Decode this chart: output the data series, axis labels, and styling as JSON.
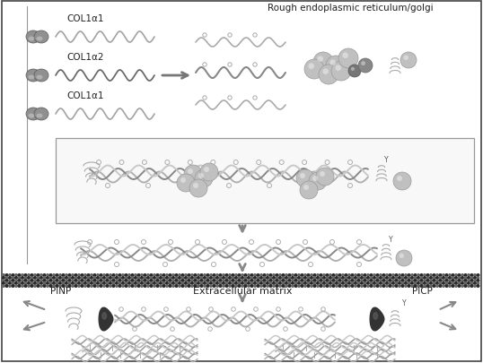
{
  "col1a1_label": "COL1α1",
  "col1a2_label": "COL1α2",
  "rer_label": "Rough endoplasmic reticulum/golgi",
  "ecm_label": "Extracellular matrix",
  "pinp_label": "PINP",
  "picp_label": "PICP",
  "bg_color": "#ffffff",
  "border_color": "#444444",
  "text_color": "#222222",
  "helix_color1": "#aaaaaa",
  "helix_color2": "#888888",
  "helix_color3": "#bbbbbb",
  "blob_color": "#b8b8b8",
  "dark_blob_color": "#444444",
  "membrane_dark": "#333333",
  "membrane_light": "#777777",
  "arrow_color": "#888888"
}
